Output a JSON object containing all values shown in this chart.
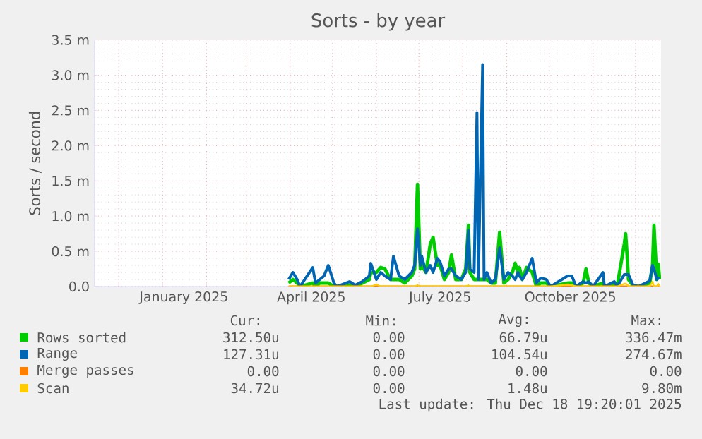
{
  "chart_data": {
    "type": "line",
    "title": "Sorts - by year",
    "ylabel": "Sorts / second",
    "x": [
      "2025-03-31",
      "2025-04-03",
      "2025-04-06",
      "2025-04-08",
      "2025-04-17",
      "2025-04-19",
      "2025-04-22",
      "2025-04-25",
      "2025-04-28",
      "2025-05-02",
      "2025-05-04",
      "2025-05-13",
      "2025-05-17",
      "2025-05-22",
      "2025-05-27",
      "2025-05-28",
      "2025-06-01",
      "2025-06-04",
      "2025-06-07",
      "2025-06-11",
      "2025-06-13",
      "2025-06-17",
      "2025-06-21",
      "2025-06-26",
      "2025-06-28",
      "2025-06-30",
      "2025-07-02",
      "2025-07-03",
      "2025-07-06",
      "2025-07-09",
      "2025-07-11",
      "2025-07-14",
      "2025-07-16",
      "2025-07-19",
      "2025-07-22",
      "2025-07-24",
      "2025-07-27",
      "2025-07-31",
      "2025-08-03",
      "2025-08-05",
      "2025-08-06",
      "2025-08-09",
      "2025-08-11",
      "2025-08-12",
      "2025-08-15",
      "2025-08-16",
      "2025-08-18",
      "2025-08-21",
      "2025-08-24",
      "2025-08-27",
      "2025-08-30",
      "2025-09-02",
      "2025-09-05",
      "2025-09-07",
      "2025-09-09",
      "2025-09-10",
      "2025-09-12",
      "2025-09-15",
      "2025-09-19",
      "2025-09-22",
      "2025-09-25",
      "2025-09-29",
      "2025-10-02",
      "2025-10-14",
      "2025-10-17",
      "2025-10-20",
      "2025-10-25",
      "2025-10-27",
      "2025-10-29",
      "2025-11-01",
      "2025-11-08",
      "2025-11-09",
      "2025-11-16",
      "2025-11-18",
      "2025-11-23",
      "2025-11-24",
      "2025-11-25",
      "2025-11-26",
      "2025-11-29",
      "2025-12-03",
      "2025-12-11",
      "2025-12-13",
      "2025-12-14",
      "2025-12-16",
      "2025-12-17",
      "2025-12-18"
    ],
    "series": [
      {
        "name": "Rows sorted",
        "color": "#00cc00",
        "values": [
          0.05,
          0.1,
          0.05,
          0,
          0.05,
          0,
          0.05,
          0.05,
          0.05,
          0,
          0,
          0.02,
          0,
          0.05,
          0.1,
          0.2,
          0.2,
          0.27,
          0.25,
          0.1,
          0.1,
          0.1,
          0.05,
          0.15,
          0.25,
          1.45,
          0.25,
          0.3,
          0.2,
          0.6,
          0.7,
          0.3,
          0.3,
          0.1,
          0.2,
          0.45,
          0.1,
          0.1,
          0.25,
          0.87,
          0.2,
          0.1,
          0.1,
          0.1,
          0.1,
          0.1,
          0.1,
          0.05,
          0.05,
          0.77,
          0.05,
          0.1,
          0.2,
          0.33,
          0.2,
          0.27,
          0.1,
          0.27,
          0.2,
          0,
          0.05,
          0.05,
          0,
          0.05,
          0.05,
          0,
          0.05,
          0.25,
          0.05,
          0,
          0.05,
          0,
          0.03,
          0,
          0.6,
          0.75,
          0.45,
          0.1,
          0.02,
          0,
          0.05,
          0.3,
          0.87,
          0.1,
          0.32,
          0.1
        ]
      },
      {
        "name": "Range",
        "color": "#0066b3",
        "values": [
          0.1,
          0.2,
          0.1,
          0,
          0.27,
          0.05,
          0.1,
          0.15,
          0.3,
          0.05,
          0,
          0.07,
          0.02,
          0.07,
          0.15,
          0.33,
          0.1,
          0.2,
          0.15,
          0.1,
          0.43,
          0.15,
          0.1,
          0.2,
          0.3,
          0.82,
          0.3,
          0.43,
          0.2,
          0.3,
          0.2,
          0.4,
          0.35,
          0.15,
          0.25,
          0.25,
          0.15,
          0.1,
          0.2,
          0.8,
          0.25,
          0.2,
          2.47,
          0.1,
          3.15,
          0.1,
          0.2,
          0.05,
          0.1,
          0.55,
          0.1,
          0.2,
          0.15,
          0.1,
          0.2,
          0.15,
          0.1,
          0.2,
          0.4,
          0.05,
          0.12,
          0.1,
          0,
          0.15,
          0.15,
          0,
          0.07,
          0.05,
          0.07,
          0,
          0.2,
          0,
          0.07,
          0,
          0.17,
          0.17,
          0.17,
          0.17,
          0.03,
          0,
          0.08,
          0.3,
          0.25,
          0.1,
          0.12,
          0.12
        ]
      },
      {
        "name": "Merge passes",
        "color": "#ff8000",
        "x": [
          "2025-03-31",
          "2025-12-18"
        ],
        "values": [
          0,
          0
        ]
      },
      {
        "name": "Scan",
        "color": "#ffcc00",
        "values": [
          0,
          0,
          0,
          0,
          0,
          0,
          0,
          0,
          0,
          0,
          0,
          0,
          0,
          0,
          0,
          0,
          0.03,
          0,
          0,
          0,
          0,
          0,
          0,
          0,
          0,
          0.02,
          0,
          0,
          0,
          0,
          0,
          0,
          0,
          0,
          0,
          0,
          0,
          0,
          0,
          0.02,
          0,
          0,
          0,
          0,
          0,
          0,
          0,
          0,
          0,
          0,
          0,
          0,
          0,
          0,
          0,
          0,
          0,
          0,
          0,
          0,
          0,
          0,
          0,
          0.03,
          0.02,
          0,
          0,
          0,
          0,
          0,
          0,
          0,
          0,
          0,
          0.04,
          0.04,
          0.03,
          0,
          0,
          0,
          0,
          0.07,
          0,
          0,
          0.04,
          0
        ]
      }
    ],
    "xlim": [
      "2024-11-14",
      "2025-12-19"
    ],
    "xticks": [
      {
        "value": "2024-12-01",
        "label": null
      },
      {
        "value": "2025-01-01",
        "label": null
      },
      {
        "value": "2025-02-01",
        "label": null
      },
      {
        "value": "2025-03-01",
        "label": null
      },
      {
        "value": "2025-04-01",
        "label": null
      },
      {
        "value": "2025-05-01",
        "label": null
      },
      {
        "value": "2025-06-01",
        "label": null
      },
      {
        "value": "2025-07-01",
        "label": null
      },
      {
        "value": "2025-08-01",
        "label": null
      },
      {
        "value": "2025-09-01",
        "label": null
      },
      {
        "value": "2025-10-01",
        "label": null
      },
      {
        "value": "2025-11-01",
        "label": null
      },
      {
        "value": "2025-12-01",
        "label": null
      },
      {
        "value": "2025-01-16",
        "label": "January 2025"
      },
      {
        "value": "2025-04-16",
        "label": "April 2025"
      },
      {
        "value": "2025-07-16",
        "label": "July 2025"
      },
      {
        "value": "2025-10-16",
        "label": "October 2025"
      }
    ],
    "ylim": [
      0,
      3.5
    ],
    "yticks": [
      {
        "value": 0,
        "label": "0.0"
      },
      {
        "value": 0.5,
        "label": "0.5 m"
      },
      {
        "value": 1,
        "label": "1.0 m"
      },
      {
        "value": 1.5,
        "label": "1.5 m"
      },
      {
        "value": 2,
        "label": "2.0 m"
      },
      {
        "value": 2.5,
        "label": "2.5 m"
      },
      {
        "value": 3,
        "label": "3.0 m"
      },
      {
        "value": 3.5,
        "label": "3.5 m"
      }
    ],
    "grid": true,
    "legend": "bottom",
    "marker": "none",
    "line_style": "solid",
    "annotations": [
      "Cur:",
      "Min:",
      "Avg:",
      "Max:",
      "312.50u",
      "0.00",
      "66.79u",
      "336.47m",
      "127.31u",
      "0.00",
      "104.54u",
      "274.67m",
      "0.00",
      "0.00",
      "0.00",
      "0.00",
      "34.72u",
      "0.00",
      "1.48u",
      "9.80m",
      "Last update: Thu Dec 18 19:20:01 2025"
    ]
  }
}
